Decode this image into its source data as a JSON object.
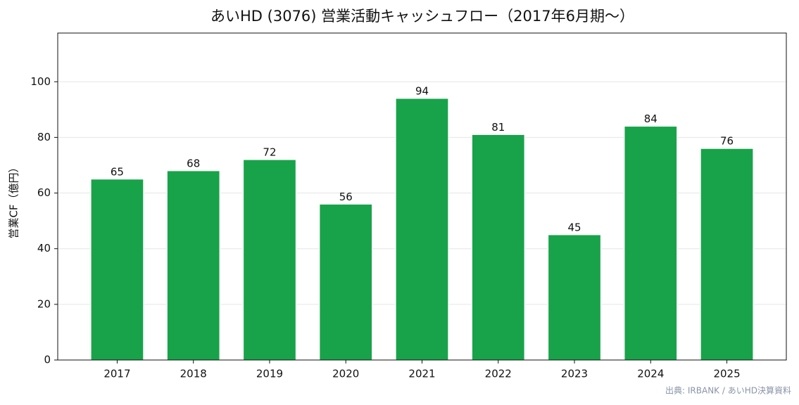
{
  "chart_data": {
    "type": "bar",
    "title": "あいHD (3076) 営業活動キャッシュフロー（2017年6月期〜）",
    "y_label": "営業CF（億円）",
    "source": "出典: IRBANK / あいHD決算資料",
    "categories": [
      "2017",
      "2018",
      "2019",
      "2020",
      "2021",
      "2022",
      "2023",
      "2024",
      "2025"
    ],
    "values": [
      65,
      68,
      72,
      56,
      94,
      81,
      45,
      84,
      76
    ],
    "color": "#18a34a",
    "ylim": [
      0,
      117.5
    ],
    "yticks": [
      0,
      20,
      40,
      60,
      80,
      100
    ],
    "grid": true
  }
}
